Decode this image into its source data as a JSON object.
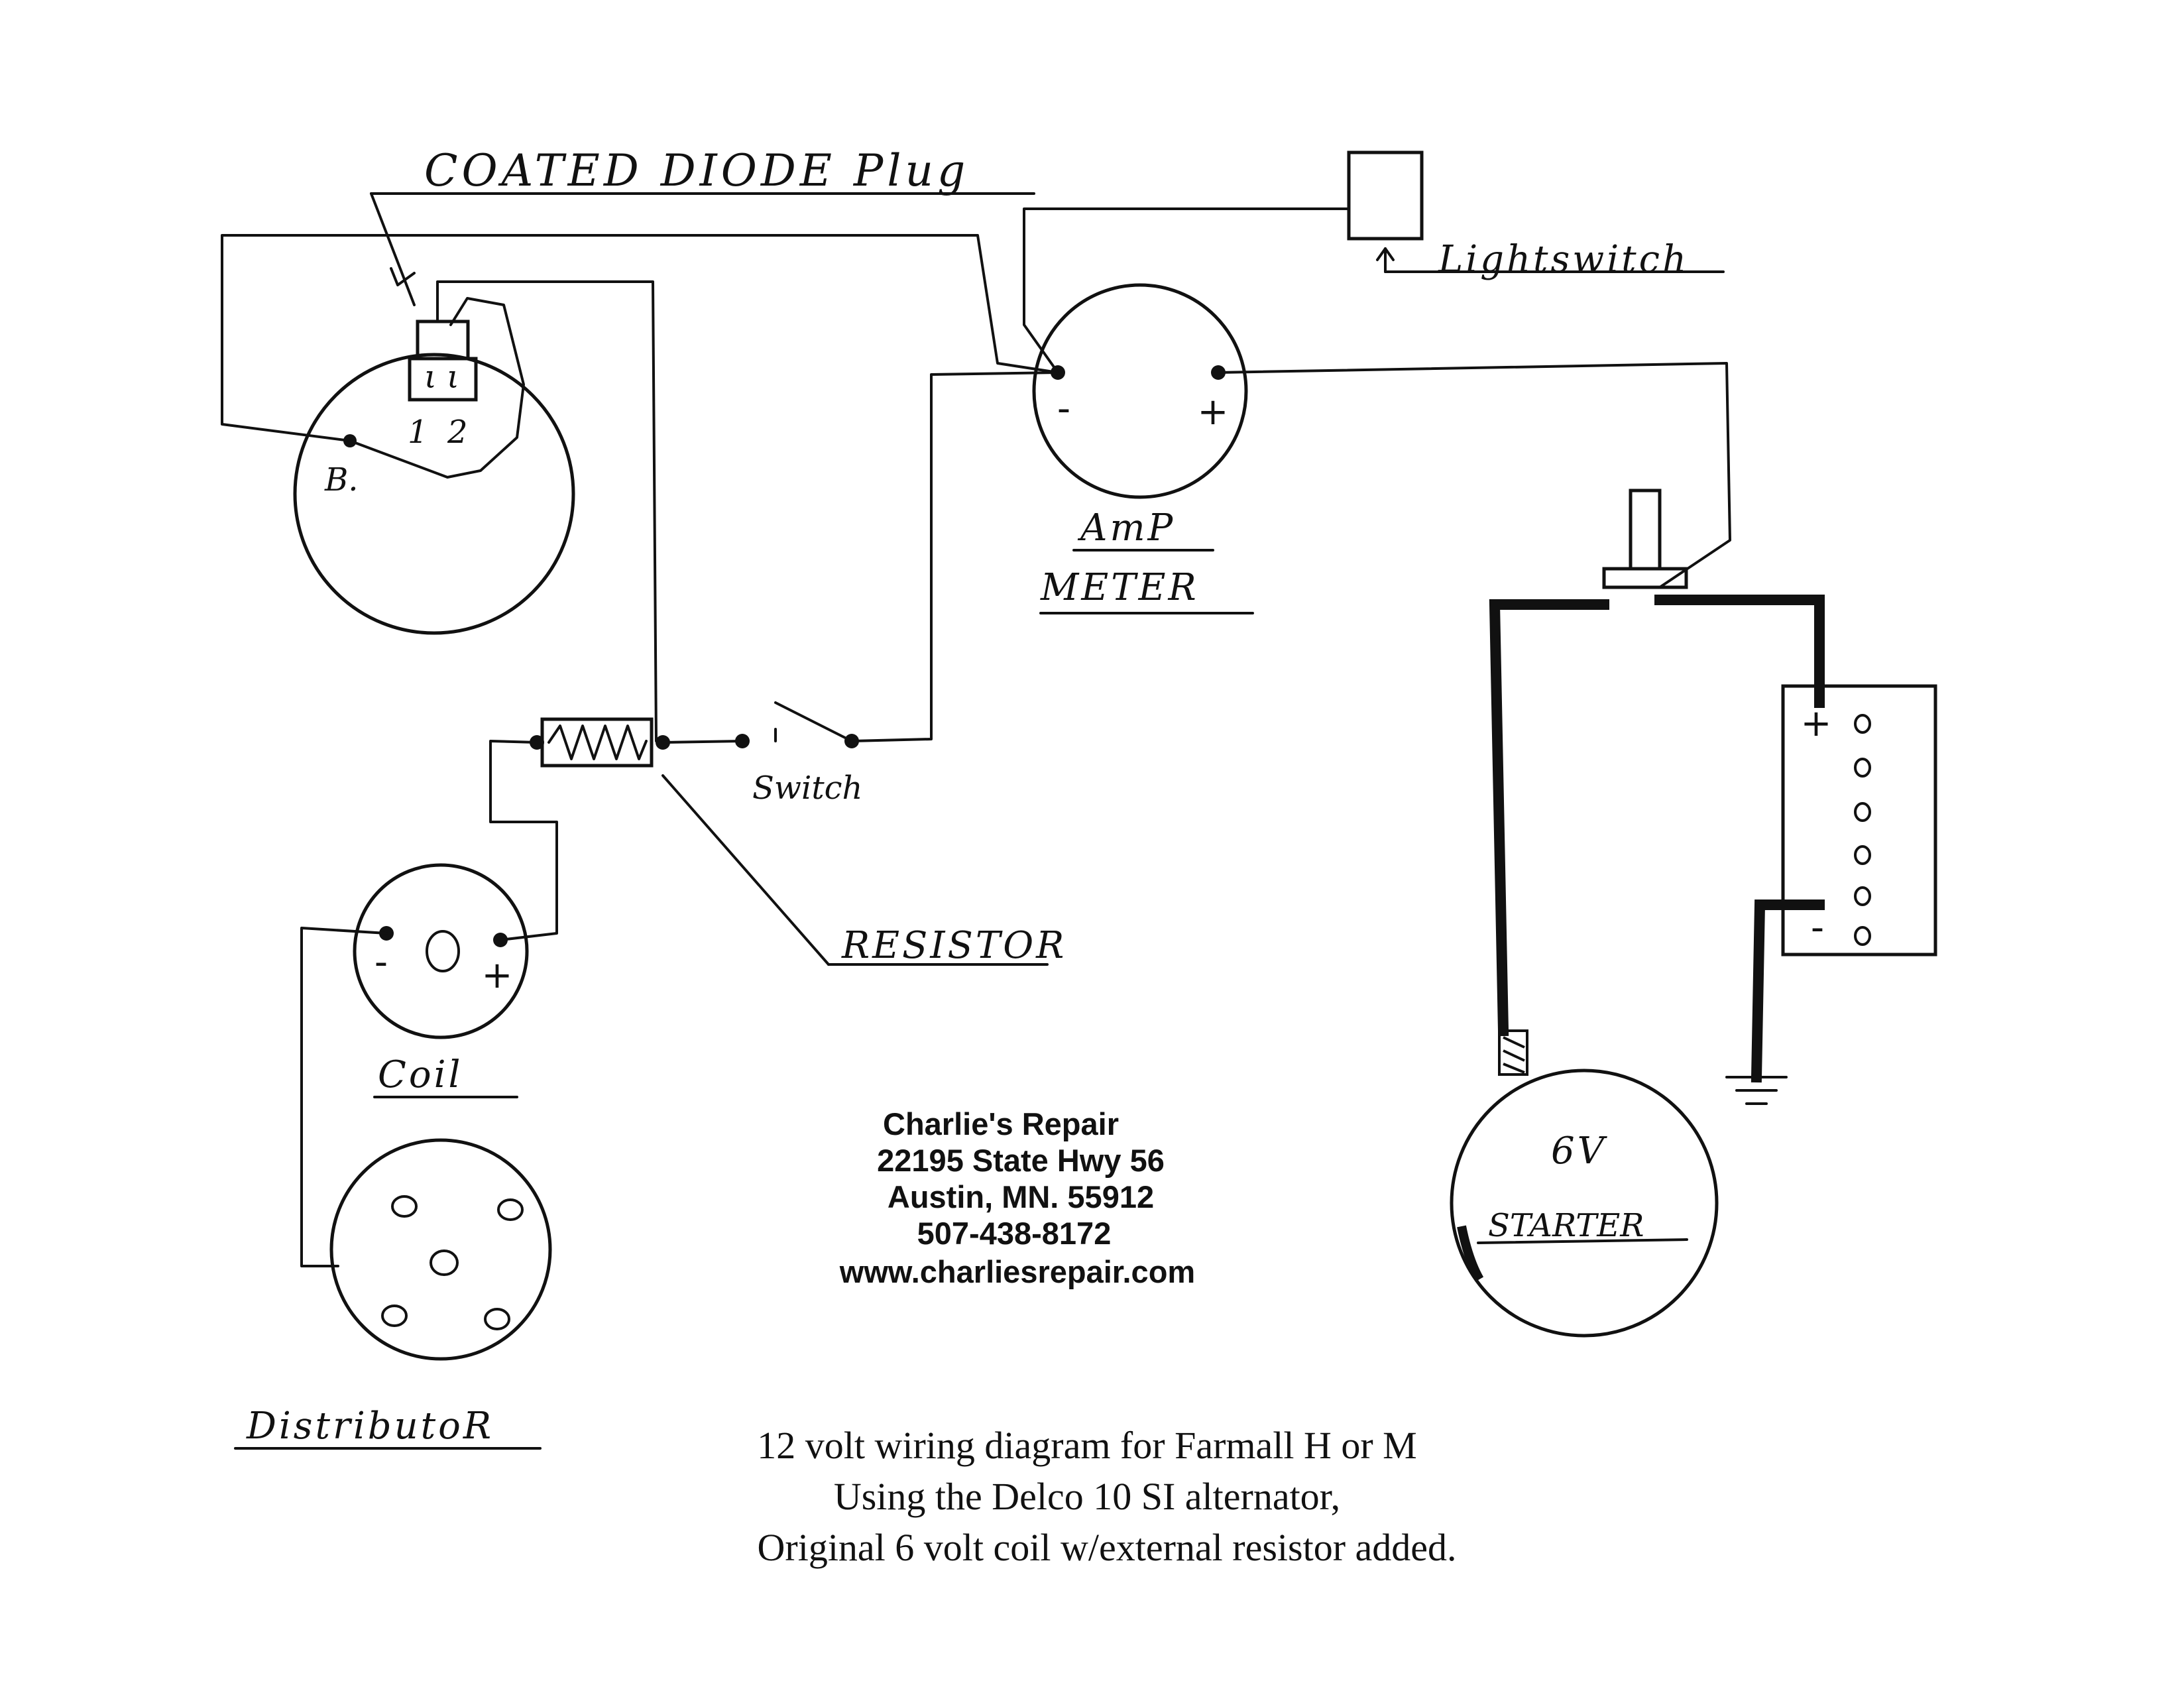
{
  "labels": {
    "diode_plug": "COATED DIODE Plug",
    "alternator_terminal_1": "1",
    "alternator_terminal_2": "2",
    "alternator_b": "B.",
    "light_switch": "Lightswitch",
    "ammeter_line1": "AmP",
    "ammeter_line2": "METER",
    "ammeter_minus": "-",
    "ammeter_plus": "+",
    "switch": "Switch",
    "resistor": "RESISTOR",
    "coil": "Coil",
    "coil_minus": "-",
    "coil_plus": "+",
    "distributor": "DistributoR",
    "starter_voltage": "6V",
    "starter": "STARTER",
    "battery_plus": "+",
    "battery_minus": "-"
  },
  "shop": {
    "name": "Charlie's Repair",
    "street": "22195 State Hwy 56",
    "city": "Austin, MN.  55912",
    "phone": "507-438-8172",
    "website": "www.charliesrepair.com"
  },
  "caption": {
    "line1": "12 volt wiring diagram for Farmall H or M",
    "line2": "Using the Delco 10 SI alternator,",
    "line3": "Original 6 volt coil w/external resistor added."
  }
}
